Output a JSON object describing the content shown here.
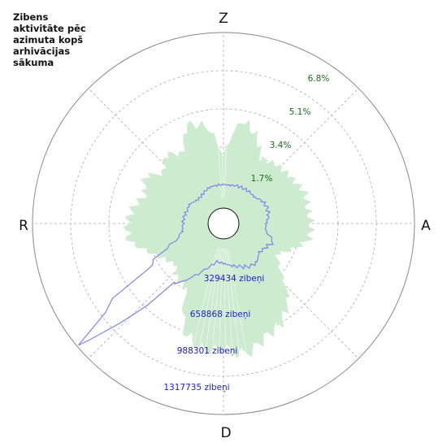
{
  "title_lines": [
    "Zibens",
    "aktivitāte pēc",
    "azimuta kopš",
    "arhivācijas",
    "sākuma"
  ],
  "compass": {
    "north": "Z",
    "east": "A",
    "south": "D",
    "west": "R"
  },
  "colors": {
    "activity_fill": "#cdeccf",
    "count_line": "#8080ee",
    "percent_text": "#1a6b1a",
    "count_text": "#1a1acc",
    "grid": "#aaaaaa"
  },
  "chart_data": {
    "type": "polar",
    "title": "Zibens aktivitāte pēc azimuta kopš arhivācijas sākuma",
    "percent_ticks": [
      "1.7%",
      "3.4%",
      "5.1%",
      "6.8%"
    ],
    "count_ticks": [
      "329434 zibeņi",
      "658868 zibeņi",
      "988301 zibeņi",
      "1317735 zibeņi"
    ],
    "azimuth_deg": [
      0,
      10,
      20,
      30,
      40,
      50,
      60,
      70,
      80,
      90,
      100,
      110,
      120,
      130,
      140,
      150,
      160,
      170,
      180,
      190,
      200,
      210,
      220,
      230,
      240,
      250,
      260,
      270,
      280,
      290,
      300,
      310,
      320,
      330,
      340,
      350
    ],
    "activity_percent": [
      2.3,
      4.0,
      3.5,
      2.6,
      2.8,
      2.9,
      3.0,
      3.2,
      3.1,
      3.2,
      3.2,
      2.6,
      2.0,
      2.6,
      3.8,
      4.4,
      4.7,
      5.2,
      4.9,
      5.0,
      4.4,
      2.6,
      2.5,
      2.1,
      2.4,
      2.9,
      3.6,
      3.6,
      3.4,
      3.0,
      3.4,
      2.8,
      3.3,
      2.9,
      4.0,
      3.7
    ],
    "strike_count": [
      130000,
      130000,
      135000,
      140000,
      140000,
      140000,
      165000,
      170000,
      170000,
      150000,
      150000,
      210000,
      180000,
      170000,
      200000,
      190000,
      170000,
      150000,
      135000,
      130000,
      175000,
      255000,
      360000,
      1300000,
      410000,
      190000,
      145000,
      140000,
      135000,
      130000,
      130000,
      110000,
      110000,
      120000,
      130000,
      130000
    ]
  }
}
